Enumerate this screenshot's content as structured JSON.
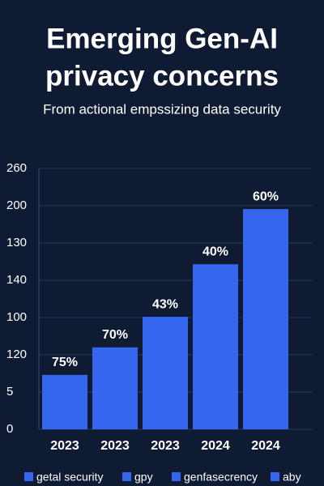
{
  "chart_data": {
    "type": "bar",
    "title": [
      "Emerging Gen-AI",
      "privacy concerns"
    ],
    "subtitle": "From actional empssizing data security",
    "categories": [
      "2023",
      "2023",
      "2023",
      "2024",
      "2024"
    ],
    "values": [
      1.46,
      2.2,
      3.02,
      4.43,
      5.91
    ],
    "annotations": [
      "75%",
      "70%",
      "43%",
      "40%",
      "60%"
    ],
    "color": "#3567ee",
    "ylim": [
      0,
      7
    ],
    "yticks": [
      0,
      {
        "value": 1,
        "label": "5"
      },
      {
        "value": 2,
        "label": "120"
      },
      {
        "value": 3,
        "label": "100"
      },
      {
        "value": 4,
        "label": "140"
      },
      {
        "value": 5,
        "label": "130"
      },
      {
        "value": 6,
        "label": "200"
      },
      {
        "value": 7,
        "label": "260"
      }
    ],
    "grid": true,
    "legend": [
      "getal security",
      "gpy",
      "genfasecrency",
      "aby"
    ]
  }
}
